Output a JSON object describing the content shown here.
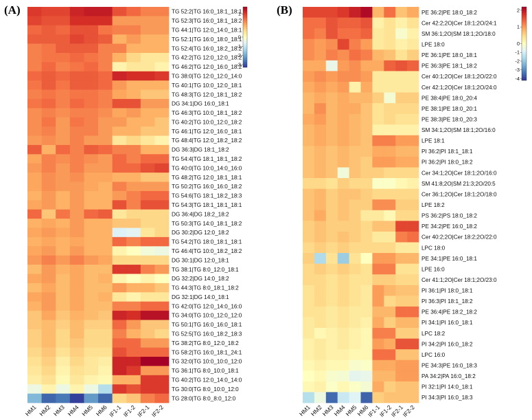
{
  "colors": {
    "stops": [
      "#313695",
      "#4575b4",
      "#74add1",
      "#abd9e9",
      "#e0f3f8",
      "#ffffbf",
      "#fee090",
      "#fdae61",
      "#f46d43",
      "#d73027",
      "#a50026"
    ],
    "outline": "#333333"
  },
  "chart_data": [
    {
      "panel_label": "(A)",
      "type": "heatmap",
      "columns": [
        "HM1",
        "HM2",
        "HM3",
        "HM4",
        "HM5",
        "HM6",
        "IF1-1",
        "IF1-2",
        "IF2-1",
        "IF2-2"
      ],
      "rows": [
        "TG 52:2|TG 16:0_18:1_18:1",
        "TG 52:3|TG 16:0_18:1_18:2",
        "TG 44:1|TG 12:0_14:0_18:1",
        "TG 52:1|TG 16:0_18:0_18:1",
        "TG 52:4|TG 16:0_18:2_18:2",
        "TG 42:2|TG 12:0_12:0_18:2",
        "TG 46:2|TG 12:0_16:0_18:2",
        "TG 38:0|TG 12:0_12:0_14:0",
        "TG 40:1|TG 10:0_12:0_18:1",
        "TG 48:3|TG 12:0_18:1_18:2",
        "DG 34:1|DG 16:0_18:1",
        "TG 46:3|TG 10:0_18:1_18:2",
        "TG 40:2|TG 10:0_12:0_18:2",
        "TG 46:1|TG 12:0_16:0_18:1",
        "TG 48:4|TG 12:0_18:2_18:2",
        "DG 36:3|DG 18:1_18:2",
        "TG 54:4|TG 18:1_18:1_18:2",
        "TG 40:0|TG 10:0_14:0_16:0",
        "TG 48:2|TG 12:0_18:1_18:1",
        "TG 50:2|TG 16:0_16:0_18:2",
        "TG 54:6|TG 18:1_18:2_18:3",
        "TG 54:3|TG 18:1_18:1_18:1",
        "DG 36:4|DG 18:2_18:2",
        "TG 50:3|TG 14:0_18:1_18:2",
        "DG 30:2|DG 12:0_18:2",
        "TG 54:2|TG 18:0_18:1_18:1",
        "TG 46:4|TG 10:0_18:2_18:2",
        "DG 30:1|DG 12:0_18:1",
        "TG 38:1|TG 8:0_12:0_18:1",
        "DG 32:2|DG 14:0_18:2",
        "TG 44:3|TG 8:0_18:1_18:2",
        "DG 32:1|DG 14:0_18:1",
        "TG 42:0|TG 12:0_14:0_16:0",
        "TG 34:0|TG 10:0_12:0_12:0",
        "TG 50:1|TG 16:0_16:0_18:1",
        "TG 52:5|TG 16:0_18:2_18:3",
        "TG 38:2|TG 8:0_12:0_18:2",
        "TG 58:2|TG 16:0_18:1_24:1",
        "TG 32:0|TG 10:0_10:0_12:0",
        "TG 36:1|TG 8:0_10:0_18:1",
        "TG 40:2|TG 12:0_14:0_14:0",
        "TG 30:0|TG 8:0_10:0_12:0",
        "TG 28:0|TG 8:0_8:0_12:0"
      ],
      "values": [
        [
          1.0,
          0.95,
          0.95,
          1.1,
          1.15,
          1.15,
          0.9,
          0.8,
          0.7,
          0.7
        ],
        [
          0.95,
          0.9,
          0.9,
          1.05,
          1.05,
          1.05,
          0.6,
          0.6,
          0.6,
          0.6
        ],
        [
          0.8,
          0.85,
          0.8,
          0.9,
          0.9,
          0.75,
          0.7,
          0.7,
          0.6,
          0.6
        ],
        [
          0.85,
          0.85,
          0.85,
          0.95,
          0.9,
          0.85,
          0.5,
          0.6,
          0.5,
          0.5
        ],
        [
          0.7,
          0.75,
          0.85,
          0.85,
          0.85,
          0.7,
          0.7,
          0.5,
          0.5,
          0.5
        ],
        [
          0.7,
          0.75,
          0.75,
          0.8,
          0.75,
          0.7,
          0.5,
          0.3,
          0.2,
          0.2
        ],
        [
          0.7,
          0.8,
          0.7,
          0.75,
          0.8,
          0.7,
          0.1,
          0.2,
          0.2,
          0.1
        ],
        [
          0.8,
          0.85,
          0.8,
          0.85,
          0.85,
          0.8,
          1.1,
          1.05,
          1.05,
          1.0
        ],
        [
          0.75,
          0.85,
          0.75,
          0.85,
          0.85,
          0.8,
          0.6,
          0.5,
          0.5,
          0.5
        ],
        [
          0.7,
          0.75,
          0.7,
          0.75,
          0.75,
          0.7,
          0.55,
          0.5,
          0.4,
          0.4
        ],
        [
          0.75,
          0.8,
          0.7,
          0.8,
          0.75,
          0.7,
          0.9,
          0.9,
          0.6,
          0.6
        ],
        [
          0.65,
          0.7,
          0.65,
          0.7,
          0.7,
          0.65,
          0.55,
          0.6,
          0.5,
          0.5
        ],
        [
          0.65,
          0.75,
          0.6,
          0.75,
          0.7,
          0.6,
          0.6,
          0.5,
          0.5,
          0.4
        ],
        [
          0.65,
          0.7,
          0.6,
          0.7,
          0.7,
          0.6,
          0.5,
          0.5,
          0.4,
          0.4
        ],
        [
          0.6,
          0.65,
          0.6,
          0.7,
          0.6,
          0.6,
          0.2,
          0.3,
          0.2,
          0.1
        ],
        [
          0.85,
          0.5,
          0.8,
          0.7,
          0.85,
          0.8,
          0.7,
          0.7,
          0.5,
          0.5
        ],
        [
          0.55,
          0.7,
          0.65,
          0.7,
          0.65,
          0.6,
          0.8,
          0.7,
          0.8,
          0.8
        ],
        [
          0.6,
          0.7,
          0.6,
          0.7,
          0.6,
          0.6,
          0.8,
          0.8,
          0.9,
          0.95
        ],
        [
          0.55,
          0.65,
          0.6,
          0.65,
          0.55,
          0.55,
          0.5,
          0.5,
          0.4,
          0.4
        ],
        [
          0.55,
          0.65,
          0.6,
          0.6,
          0.55,
          0.5,
          0.7,
          0.6,
          0.6,
          0.6
        ],
        [
          0.5,
          0.6,
          0.5,
          0.6,
          0.5,
          0.5,
          0.6,
          0.7,
          0.8,
          0.8
        ],
        [
          0.55,
          0.6,
          0.5,
          0.6,
          0.5,
          0.5,
          0.9,
          0.7,
          0.9,
          0.9
        ],
        [
          0.8,
          0.4,
          0.75,
          0.6,
          0.8,
          0.85,
          0.2,
          0.3,
          0.3,
          0.3
        ],
        [
          0.5,
          0.55,
          0.5,
          0.6,
          0.5,
          0.5,
          0.4,
          0.4,
          0.3,
          0.3
        ],
        [
          0.55,
          0.6,
          0.55,
          0.6,
          0.5,
          0.5,
          -0.7,
          -0.6,
          0.2,
          0.3
        ],
        [
          0.5,
          0.55,
          0.5,
          0.55,
          0.5,
          0.5,
          0.8,
          0.7,
          0.8,
          0.8
        ],
        [
          0.55,
          0.6,
          0.5,
          0.6,
          0.5,
          0.5,
          0.1,
          0.0,
          -0.3,
          -0.4
        ],
        [
          0.6,
          0.7,
          0.6,
          0.7,
          0.6,
          0.55,
          0.3,
          0.3,
          0.3,
          0.3
        ],
        [
          0.45,
          0.6,
          0.5,
          0.55,
          0.45,
          0.45,
          1.0,
          1.0,
          0.7,
          0.6
        ],
        [
          0.55,
          0.6,
          0.45,
          0.55,
          0.45,
          0.5,
          0.1,
          0.0,
          0.1,
          0.0
        ],
        [
          0.45,
          0.55,
          0.45,
          0.55,
          0.45,
          0.45,
          0.6,
          0.5,
          0.5,
          0.4
        ],
        [
          0.55,
          0.6,
          0.45,
          0.55,
          0.45,
          0.5,
          0.2,
          0.1,
          0.2,
          0.2
        ],
        [
          0.5,
          0.6,
          0.45,
          0.55,
          0.45,
          0.45,
          0.7,
          0.7,
          0.8,
          0.8
        ],
        [
          0.4,
          0.55,
          0.4,
          0.5,
          0.45,
          0.4,
          1.1,
          1.05,
          1.2,
          1.2
        ],
        [
          0.4,
          0.45,
          0.35,
          0.45,
          0.35,
          0.35,
          0.8,
          0.6,
          0.4,
          0.4
        ],
        [
          0.35,
          0.45,
          0.3,
          0.45,
          0.3,
          0.3,
          0.7,
          0.5,
          0.4,
          0.3
        ],
        [
          0.35,
          0.45,
          0.3,
          0.4,
          0.3,
          0.3,
          0.8,
          0.8,
          0.6,
          0.6
        ],
        [
          0.3,
          0.4,
          0.25,
          0.35,
          0.25,
          0.25,
          0.9,
          0.8,
          0.8,
          0.8
        ],
        [
          0.25,
          0.35,
          0.15,
          0.3,
          0.2,
          0.15,
          1.1,
          1.1,
          1.3,
          1.3
        ],
        [
          0.2,
          0.3,
          0.1,
          0.25,
          0.2,
          0.1,
          1.1,
          1.0,
          0.6,
          0.6
        ],
        [
          0.15,
          0.25,
          0.05,
          0.2,
          0.1,
          0.05,
          0.5,
          0.5,
          1.0,
          1.0
        ],
        [
          -0.4,
          0.1,
          -0.4,
          0.1,
          -0.4,
          -1.2,
          1.0,
          0.9,
          1.0,
          1.0
        ],
        [
          -1.8,
          -2.8,
          -2.6,
          -3.2,
          -2.2,
          -2.8,
          0.3,
          0.4,
          0.7,
          0.8
        ]
      ],
      "colorbar": {
        "ticks": [
          1,
          0,
          -1,
          -2,
          -3
        ],
        "vmin": -3.3,
        "vmax": 1.3
      }
    },
    {
      "panel_label": "(B)",
      "type": "heatmap",
      "columns": [
        "HM1",
        "HM2",
        "HM3",
        "HM4",
        "HM5",
        "HM6",
        "IF1-1",
        "IF1-2",
        "IF2-1",
        "IF2-2"
      ],
      "rows": [
        "PE 36:2|PE 18:0_18:2",
        "Cer 42:2;2O|Cer 18:1;2O/24:1",
        "SM 36:1;2O|SM 18:1;2O/18:0",
        "LPE 18:0",
        "PE 36:1|PE 18:0_18:1",
        "PE 36:3|PE 18:1_18:2",
        "Cer 40:1;2O|Cer 18:1;2O/22:0",
        "Cer 42:1;2O|Cer 18:1;2O/24:0",
        "PE 38:4|PE 18:0_20:4",
        "PE 38:1|PE 18:0_20:1",
        "PE 38:3|PE 18:0_20:3",
        "SM 34:1;2O|SM 18:1;2O/16:0",
        "LPE 18:1",
        "PI 36:2|PI 18:1_18:1",
        "PI 36:2|PI 18:0_18:2",
        "Cer 34:1;2O|Cer 18:1;2O/16:0",
        "SM 41:8;2O|SM 21:3;2O/20:5",
        "Cer 36:1;2O|Cer 18:1;2O/18:0",
        "LPE 18:2",
        "PS 36:2|PS 18:0_18:2",
        "PE 34:2|PE 16:0_18:2",
        "Cer 40:2;2O|Cer 18:2;2O/22:0",
        "LPC 18:0",
        "PE 34:1|PE 16:0_18:1",
        "LPE 16:0",
        "Cer 41:1;2O|Cer 18:1;2O/23:0",
        "PI 36:1|PI 18:0_18:1",
        "PI 36:3|PI 18:1_18:2",
        "PE 36:4|PE 18:2_18:2",
        "PI 34:1|PI 16:0_18:1",
        "LPC 18:2",
        "PI 34:2|PI 16:0_18:2",
        "LPC 16:0",
        "PE 34:3|PE 16:0_18:3",
        "PA 34:2|PA 16:0_18:2",
        "PI 32:1|PI 14:0_18:1",
        "PI 34:3|PI 16:0_18:3"
      ],
      "values": [
        [
          1.6,
          1.6,
          1.6,
          1.7,
          1.9,
          2.1,
          0.8,
          1.3,
          0.7,
          0.9
        ],
        [
          1.3,
          1.3,
          1.5,
          1.4,
          1.4,
          1.5,
          0.2,
          0.4,
          0.2,
          0.4
        ],
        [
          1.3,
          1.2,
          1.5,
          1.3,
          1.3,
          1.4,
          0.3,
          0.4,
          -0.2,
          0.2
        ],
        [
          1.1,
          1.0,
          1.1,
          1.6,
          1.2,
          1.0,
          0.3,
          0.4,
          0.2,
          0.3
        ],
        [
          1.1,
          1.0,
          1.2,
          1.1,
          1.3,
          1.2,
          0.8,
          0.7,
          0.4,
          0.6
        ],
        [
          0.9,
          0.9,
          -0.6,
          1.0,
          1.1,
          0.9,
          0.9,
          1.4,
          1.5,
          1.4
        ],
        [
          1.0,
          1.1,
          1.0,
          1.1,
          1.1,
          1.0,
          0.3,
          0.3,
          0.3,
          0.3
        ],
        [
          0.9,
          1.0,
          0.9,
          1.0,
          0.2,
          0.9,
          0.3,
          0.3,
          0.3,
          0.3
        ],
        [
          0.8,
          0.9,
          0.8,
          0.9,
          0.8,
          0.8,
          0.6,
          -0.3,
          0.6,
          0.6
        ],
        [
          0.8,
          1.1,
          0.8,
          0.9,
          0.9,
          0.7,
          0.4,
          0.5,
          0.5,
          0.5
        ],
        [
          0.9,
          1.0,
          0.8,
          0.9,
          0.8,
          0.7,
          0.4,
          0.5,
          0.4,
          0.4
        ],
        [
          0.8,
          0.9,
          0.8,
          0.9,
          0.8,
          0.7,
          0.2,
          0.2,
          0.2,
          0.2
        ],
        [
          0.8,
          0.9,
          0.8,
          0.9,
          0.8,
          0.7,
          1.2,
          1.2,
          1.0,
          1.0
        ],
        [
          0.7,
          0.8,
          0.7,
          0.8,
          0.7,
          0.7,
          0.9,
          0.9,
          0.8,
          0.8
        ],
        [
          0.7,
          0.8,
          0.7,
          0.8,
          0.7,
          0.6,
          1.0,
          1.0,
          0.9,
          0.9
        ],
        [
          0.7,
          0.8,
          0.7,
          -0.4,
          0.7,
          0.6,
          0.6,
          0.5,
          0.5,
          0.5
        ],
        [
          0.5,
          0.5,
          0.4,
          0.6,
          0.5,
          0.5,
          -0.1,
          -0.1,
          0.1,
          0.2
        ],
        [
          0.7,
          0.8,
          0.6,
          0.7,
          0.7,
          0.6,
          0.5,
          0.5,
          0.5,
          0.5
        ],
        [
          0.7,
          0.8,
          0.6,
          0.7,
          0.6,
          0.6,
          1.1,
          1.1,
          0.6,
          0.6
        ],
        [
          0.7,
          0.9,
          0.6,
          0.7,
          0.6,
          0.3,
          0.3,
          0.1,
          0.5,
          0.5
        ],
        [
          0.6,
          0.7,
          0.6,
          0.6,
          0.6,
          0.5,
          0.7,
          0.7,
          1.6,
          1.6
        ],
        [
          0.6,
          0.7,
          0.6,
          0.7,
          0.6,
          0.5,
          0.3,
          0.3,
          1.2,
          1.3
        ],
        [
          0.5,
          0.6,
          0.5,
          0.6,
          0.5,
          0.5,
          0.5,
          0.5,
          0.3,
          0.3
        ],
        [
          0.6,
          -1.6,
          0.4,
          -1.9,
          0.4,
          0.0,
          1.0,
          1.0,
          0.8,
          0.8
        ],
        [
          0.5,
          0.6,
          0.5,
          0.6,
          0.5,
          0.4,
          1.2,
          1.2,
          0.4,
          0.4
        ],
        [
          0.5,
          0.5,
          0.4,
          0.5,
          0.4,
          0.4,
          0.6,
          0.6,
          0.5,
          0.5
        ],
        [
          0.4,
          0.5,
          0.4,
          0.5,
          0.4,
          0.3,
          1.0,
          0.8,
          0.7,
          0.7
        ],
        [
          0.4,
          0.5,
          0.4,
          0.5,
          0.4,
          0.3,
          1.0,
          0.5,
          0.6,
          0.6
        ],
        [
          0.4,
          0.4,
          0.3,
          0.4,
          0.3,
          0.3,
          0.8,
          0.8,
          1.3,
          1.3
        ],
        [
          0.3,
          0.4,
          0.3,
          0.4,
          0.3,
          0.2,
          0.9,
          0.6,
          0.8,
          0.8
        ],
        [
          0.3,
          0.1,
          0.2,
          0.3,
          0.2,
          0.1,
          1.2,
          1.2,
          0.6,
          0.6
        ],
        [
          0.2,
          0.3,
          0.2,
          0.3,
          0.2,
          0.1,
          1.0,
          0.9,
          1.5,
          1.5
        ],
        [
          0.2,
          0.3,
          0.2,
          0.2,
          0.1,
          0.1,
          1.3,
          1.3,
          0.7,
          0.7
        ],
        [
          0.1,
          0.2,
          0.1,
          0.1,
          -0.2,
          -0.1,
          0.9,
          0.9,
          1.0,
          1.0
        ],
        [
          0.0,
          0.1,
          -0.2,
          -0.3,
          -0.7,
          -0.6,
          0.8,
          0.8,
          1.0,
          1.0
        ],
        [
          0.1,
          0.2,
          -0.1,
          0.1,
          -0.1,
          -0.3,
          0.9,
          0.6,
          0.7,
          0.7
        ],
        [
          -1.5,
          -0.5,
          -3.5,
          -1.2,
          -0.8,
          -3.6,
          0.6,
          0.7,
          0.7,
          0.7
        ]
      ],
      "colorbar": {
        "ticks": [
          2,
          1,
          0,
          -1,
          -2,
          -3,
          -4
        ],
        "vmin": -4.2,
        "vmax": 2.2
      }
    }
  ]
}
